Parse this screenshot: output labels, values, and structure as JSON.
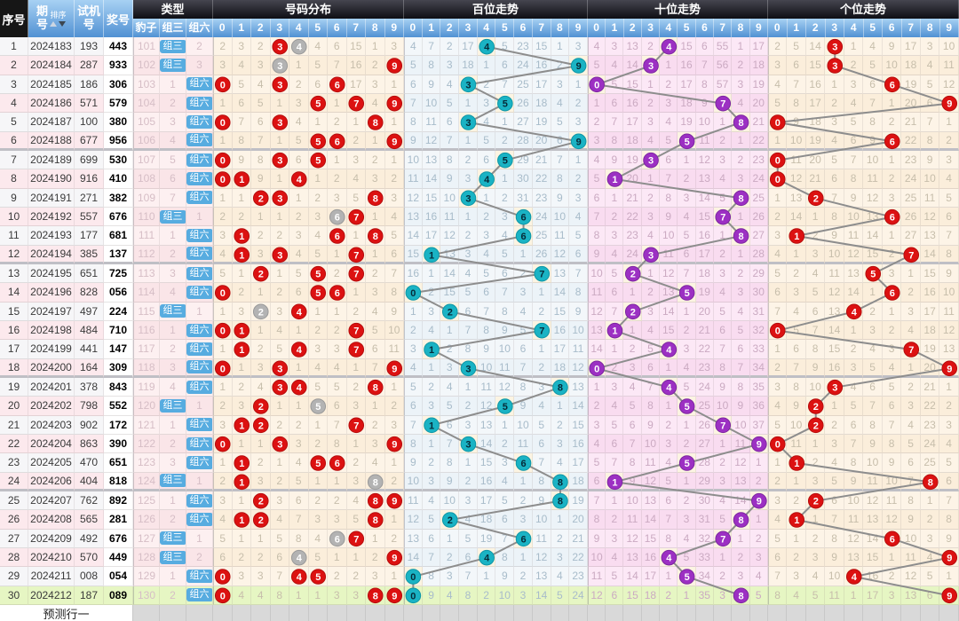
{
  "labels": {
    "seq": "序号",
    "issue": "期号",
    "sort": "排序",
    "test": "试机号",
    "prize": "奖号",
    "type": "类型",
    "baozi": "豹子",
    "zusan": "组三",
    "zuliu": "组六",
    "dist": "号码分布",
    "bai": "百位走势",
    "shi": "十位走势",
    "ge": "个位走势"
  },
  "digits": [
    "0",
    "1",
    "2",
    "3",
    "4",
    "5",
    "6",
    "7",
    "8",
    "9"
  ],
  "footer": {
    "label": "预测行一"
  },
  "colors": {
    "header_blue_top": "#a7d1f3",
    "header_blue_bottom": "#5191d3",
    "header_dark_top": "#45454f",
    "header_dark_bottom": "#0e0e14",
    "seq_header_bg": "#161616",
    "type_badge": "#57ace0",
    "meta_row_light": "#f6f6f8",
    "meta_row_pink": "#fce9ed",
    "type_light": "#fdf0f1",
    "type_dark": "#fae5e8",
    "cream_light": "#fdf4e7",
    "cream_dark": "#fbeedb",
    "blue_light": "#f3f7fa",
    "blue_dark": "#ecf3f8",
    "pink_light": "#fce8f6",
    "pink_dark": "#f9dcf0",
    "hit_highlight": "#fcf4e2",
    "green_row": "#e6f6c3",
    "circle_red": "#dc1111",
    "circle_red_border": "#b50d0d",
    "circle_gray": "#b3b3b3",
    "circle_gray_border": "#999999",
    "circle_teal": "#1ab3c4",
    "circle_teal_border": "#0e96a6",
    "circle_teal_text": "#062a38",
    "circle_purple": "#9c30c3",
    "circle_purple_border": "#7d26a0",
    "trend_line": "#8d8d8d",
    "footer_gray": "#d9d9d9",
    "miss_type": "#d6bec6",
    "miss_cream": "#c7beab",
    "miss_blue": "#a8bcca",
    "miss_pink": "#cbaac2"
  },
  "chart_data": {
    "type": "table",
    "columns": [
      "序号",
      "期号",
      "试机号",
      "奖号",
      "豹子",
      "组三",
      "组六",
      "号码分布",
      "百位走势",
      "十位走势",
      "个位走势"
    ],
    "rows": [
      {
        "seq": 1,
        "issue": "2024183",
        "test": "193",
        "prize": "443"
      },
      {
        "seq": 2,
        "issue": "2024184",
        "test": "287",
        "prize": "933"
      },
      {
        "seq": 3,
        "issue": "2024185",
        "test": "186",
        "prize": "306"
      },
      {
        "seq": 4,
        "issue": "2024186",
        "test": "571",
        "prize": "579"
      },
      {
        "seq": 5,
        "issue": "2024187",
        "test": "100",
        "prize": "380"
      },
      {
        "seq": 6,
        "issue": "2024188",
        "test": "677",
        "prize": "956"
      },
      {
        "seq": 7,
        "issue": "2024189",
        "test": "699",
        "prize": "530"
      },
      {
        "seq": 8,
        "issue": "2024190",
        "test": "916",
        "prize": "410"
      },
      {
        "seq": 9,
        "issue": "2024191",
        "test": "271",
        "prize": "382"
      },
      {
        "seq": 10,
        "issue": "2024192",
        "test": "557",
        "prize": "676"
      },
      {
        "seq": 11,
        "issue": "2024193",
        "test": "177",
        "prize": "681"
      },
      {
        "seq": 12,
        "issue": "2024194",
        "test": "385",
        "prize": "137"
      },
      {
        "seq": 13,
        "issue": "2024195",
        "test": "651",
        "prize": "725"
      },
      {
        "seq": 14,
        "issue": "2024196",
        "test": "828",
        "prize": "056"
      },
      {
        "seq": 15,
        "issue": "2024197",
        "test": "497",
        "prize": "224"
      },
      {
        "seq": 16,
        "issue": "2024198",
        "test": "484",
        "prize": "710"
      },
      {
        "seq": 17,
        "issue": "2024199",
        "test": "441",
        "prize": "147"
      },
      {
        "seq": 18,
        "issue": "2024200",
        "test": "164",
        "prize": "309"
      },
      {
        "seq": 19,
        "issue": "2024201",
        "test": "378",
        "prize": "843"
      },
      {
        "seq": 20,
        "issue": "2024202",
        "test": "798",
        "prize": "552"
      },
      {
        "seq": 21,
        "issue": "2024203",
        "test": "902",
        "prize": "172"
      },
      {
        "seq": 22,
        "issue": "2024204",
        "test": "863",
        "prize": "390"
      },
      {
        "seq": 23,
        "issue": "2024205",
        "test": "470",
        "prize": "651"
      },
      {
        "seq": 24,
        "issue": "2024206",
        "test": "404",
        "prize": "818"
      },
      {
        "seq": 25,
        "issue": "2024207",
        "test": "762",
        "prize": "892"
      },
      {
        "seq": 26,
        "issue": "2024208",
        "test": "565",
        "prize": "281"
      },
      {
        "seq": 27,
        "issue": "2024209",
        "test": "492",
        "prize": "676"
      },
      {
        "seq": 28,
        "issue": "2024210",
        "test": "570",
        "prize": "449"
      },
      {
        "seq": 29,
        "issue": "2024211",
        "test": "008",
        "prize": "054"
      },
      {
        "seq": 30,
        "issue": "2024212",
        "test": "187",
        "prize": "089"
      }
    ],
    "miss_seeds": {
      "baozi": 100,
      "zusan": 0,
      "zuliu": 1,
      "dist": [
        1,
        2,
        1,
        0,
        0,
        3,
        5,
        14,
        0,
        2
      ],
      "bai": [
        3,
        6,
        1,
        16,
        0,
        4,
        22,
        14,
        0,
        2
      ],
      "shi": [
        3,
        2,
        12,
        1,
        0,
        14,
        5,
        54,
        0,
        16
      ],
      "ge": [
        1,
        4,
        13,
        0,
        0,
        3,
        8,
        16,
        2,
        9
      ]
    }
  }
}
